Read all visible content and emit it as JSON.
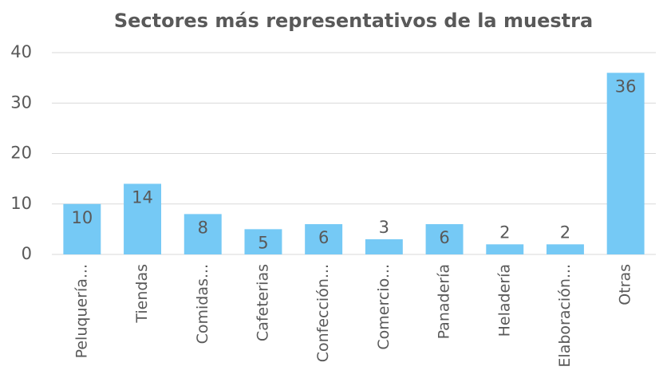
{
  "chart_data": {
    "type": "bar",
    "title": "Sectores más representativos de la muestra",
    "categories": [
      "Peluquería...",
      "Tiendas",
      "Comidas...",
      "Cafeterias",
      "Confección...",
      "Comercio...",
      "Panadería",
      "Heladería",
      "Elaboración...",
      "Otras"
    ],
    "values": [
      10,
      14,
      8,
      5,
      6,
      3,
      6,
      2,
      2,
      36
    ],
    "color": "#75c9f5",
    "ylim": [
      0,
      40
    ],
    "yticks": [
      0,
      10,
      20,
      30,
      40
    ],
    "grid": true
  }
}
